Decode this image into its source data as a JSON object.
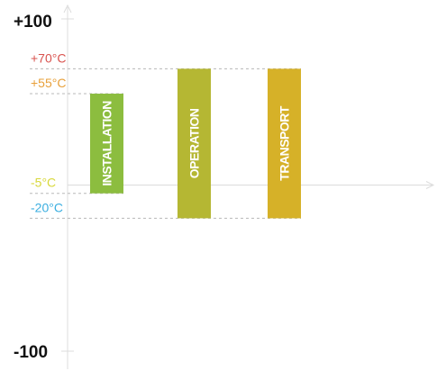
{
  "chart_data": {
    "type": "bar",
    "categories": [
      "INSTALLATION",
      "OPERATION",
      "TRANSPORT"
    ],
    "ranges": [
      {
        "category": "INSTALLATION",
        "low": -5,
        "high": 55,
        "color": "#8cbd3f"
      },
      {
        "category": "OPERATION",
        "low": -20,
        "high": 70,
        "color": "#b5b733"
      },
      {
        "category": "TRANSPORT",
        "low": -20,
        "high": 70,
        "color": "#d6b128"
      }
    ],
    "ylim": [
      -100,
      100
    ],
    "extreme_labels": {
      "top": "+100",
      "bottom": "-100"
    },
    "temperature_marks": [
      {
        "value": 70,
        "label": "+70°C",
        "color": "#d9534f"
      },
      {
        "value": 55,
        "label": "+55°C",
        "color": "#e8a03a"
      },
      {
        "value": -5,
        "label": "-5°C",
        "color": "#d8d83a"
      },
      {
        "value": -20,
        "label": "-20°C",
        "color": "#3aaee0"
      }
    ],
    "grid": false
  }
}
